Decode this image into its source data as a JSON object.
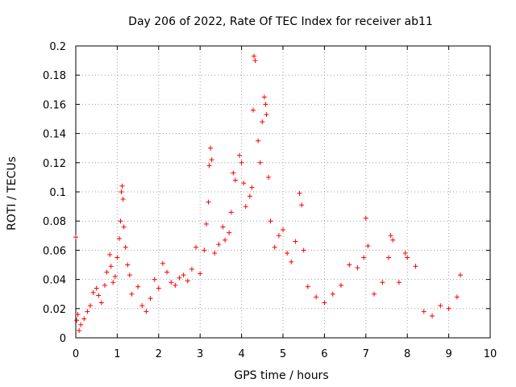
{
  "chart_data": {
    "type": "scatter",
    "title": "Day 206 of 2022, Rate Of TEC Index for receiver ab11",
    "xlabel": "GPS time / hours",
    "ylabel": "ROTI / TECUs",
    "xlim": [
      0,
      10
    ],
    "ylim": [
      0,
      0.2
    ],
    "x_ticks": [
      "0",
      "1",
      "2",
      "3",
      "4",
      "5",
      "6",
      "7",
      "8",
      "9",
      "10"
    ],
    "y_ticks": [
      "0",
      "0.02",
      "0.04",
      "0.06",
      "0.08",
      "0.1",
      "0.12",
      "0.14",
      "0.16",
      "0.18",
      "0.2"
    ],
    "grid": true,
    "marker": "+",
    "color": "#ff0000",
    "series": [
      {
        "points": [
          [
            0.0,
            0.069
          ],
          [
            0.02,
            0.012
          ],
          [
            0.05,
            0.016
          ],
          [
            0.08,
            0.005
          ],
          [
            0.12,
            0.009
          ],
          [
            0.2,
            0.013
          ],
          [
            0.28,
            0.018
          ],
          [
            0.35,
            0.022
          ],
          [
            0.42,
            0.031
          ],
          [
            0.5,
            0.034
          ],
          [
            0.55,
            0.029
          ],
          [
            0.62,
            0.024
          ],
          [
            0.7,
            0.036
          ],
          [
            0.75,
            0.045
          ],
          [
            0.82,
            0.057
          ],
          [
            0.85,
            0.049
          ],
          [
            0.9,
            0.038
          ],
          [
            0.95,
            0.042
          ],
          [
            1.0,
            0.055
          ],
          [
            1.05,
            0.068
          ],
          [
            1.08,
            0.08
          ],
          [
            1.1,
            0.1
          ],
          [
            1.12,
            0.104
          ],
          [
            1.14,
            0.095
          ],
          [
            1.16,
            0.076
          ],
          [
            1.2,
            0.062
          ],
          [
            1.25,
            0.05
          ],
          [
            1.3,
            0.043
          ],
          [
            1.35,
            0.03
          ],
          [
            1.5,
            0.035
          ],
          [
            1.6,
            0.022
          ],
          [
            1.7,
            0.018
          ],
          [
            1.8,
            0.027
          ],
          [
            1.9,
            0.04
          ],
          [
            2.0,
            0.034
          ],
          [
            2.1,
            0.051
          ],
          [
            2.2,
            0.045
          ],
          [
            2.3,
            0.038
          ],
          [
            2.4,
            0.036
          ],
          [
            2.5,
            0.041
          ],
          [
            2.6,
            0.043
          ],
          [
            2.7,
            0.039
          ],
          [
            2.8,
            0.047
          ],
          [
            2.9,
            0.062
          ],
          [
            3.0,
            0.044
          ],
          [
            3.1,
            0.06
          ],
          [
            3.15,
            0.078
          ],
          [
            3.2,
            0.093
          ],
          [
            3.22,
            0.118
          ],
          [
            3.25,
            0.13
          ],
          [
            3.28,
            0.122
          ],
          [
            3.35,
            0.058
          ],
          [
            3.45,
            0.064
          ],
          [
            3.55,
            0.076
          ],
          [
            3.6,
            0.067
          ],
          [
            3.7,
            0.072
          ],
          [
            3.75,
            0.086
          ],
          [
            3.8,
            0.113
          ],
          [
            3.85,
            0.108
          ],
          [
            3.95,
            0.125
          ],
          [
            4.0,
            0.12
          ],
          [
            4.05,
            0.106
          ],
          [
            4.1,
            0.09
          ],
          [
            4.2,
            0.097
          ],
          [
            4.25,
            0.103
          ],
          [
            4.28,
            0.156
          ],
          [
            4.3,
            0.193
          ],
          [
            4.33,
            0.19
          ],
          [
            4.4,
            0.135
          ],
          [
            4.45,
            0.12
          ],
          [
            4.5,
            0.148
          ],
          [
            4.55,
            0.165
          ],
          [
            4.58,
            0.16
          ],
          [
            4.6,
            0.153
          ],
          [
            4.65,
            0.11
          ],
          [
            4.7,
            0.08
          ],
          [
            4.8,
            0.062
          ],
          [
            4.9,
            0.07
          ],
          [
            5.0,
            0.074
          ],
          [
            5.1,
            0.058
          ],
          [
            5.2,
            0.052
          ],
          [
            5.3,
            0.066
          ],
          [
            5.4,
            0.099
          ],
          [
            5.45,
            0.091
          ],
          [
            5.5,
            0.06
          ],
          [
            5.6,
            0.035
          ],
          [
            5.8,
            0.028
          ],
          [
            6.0,
            0.024
          ],
          [
            6.2,
            0.03
          ],
          [
            6.4,
            0.036
          ],
          [
            6.6,
            0.05
          ],
          [
            6.8,
            0.048
          ],
          [
            6.95,
            0.055
          ],
          [
            7.0,
            0.082
          ],
          [
            7.05,
            0.063
          ],
          [
            7.2,
            0.03
          ],
          [
            7.4,
            0.038
          ],
          [
            7.55,
            0.055
          ],
          [
            7.6,
            0.07
          ],
          [
            7.65,
            0.067
          ],
          [
            7.8,
            0.038
          ],
          [
            7.95,
            0.058
          ],
          [
            8.0,
            0.055
          ],
          [
            8.2,
            0.049
          ],
          [
            8.4,
            0.018
          ],
          [
            8.6,
            0.015
          ],
          [
            8.8,
            0.022
          ],
          [
            9.0,
            0.02
          ],
          [
            9.2,
            0.028
          ],
          [
            9.28,
            0.043
          ]
        ]
      }
    ]
  }
}
